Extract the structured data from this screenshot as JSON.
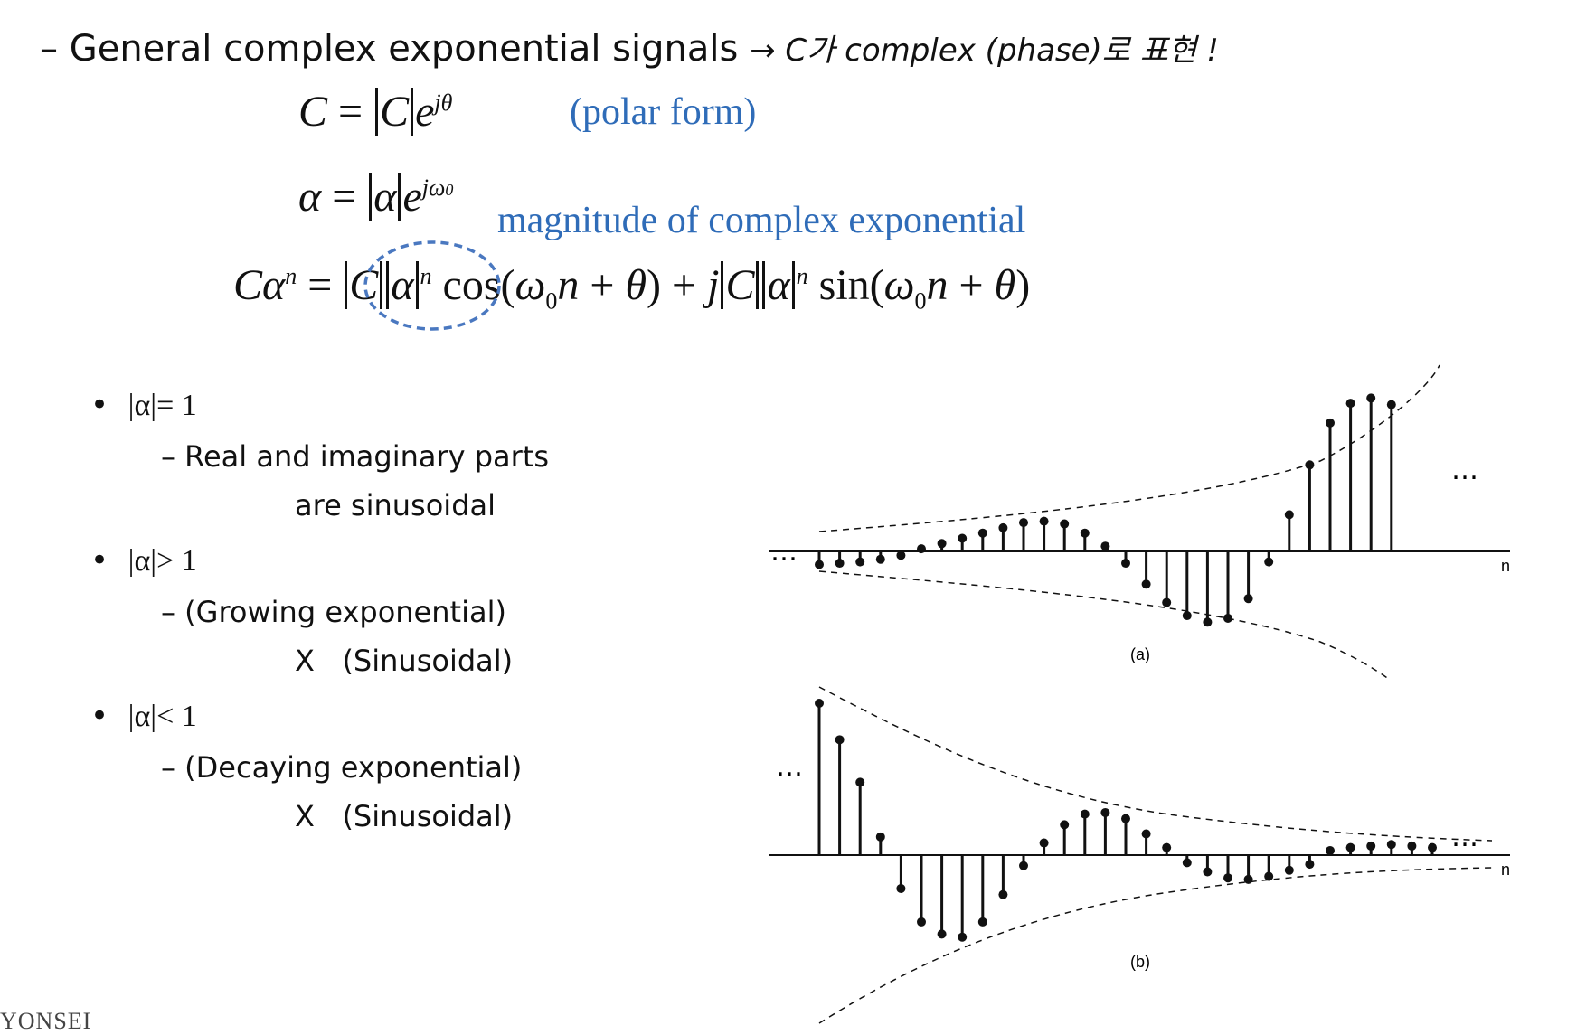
{
  "heading": {
    "text": "– General complex exponential signals",
    "note": "→ C가 complex (phase)로 표현 !"
  },
  "equations": {
    "c_polar": "C = |C|e^{jθ}",
    "alpha_polar": "α = |α|e^{jω0}",
    "c_alpha_n": "Cα^n = |C||α|^n cos(ω0 n + θ) + j|C||α|^n sin(ω0 n + θ)"
  },
  "annotations": {
    "polar_form": "(polar form)",
    "magnitude": "magnitude of complex exponential"
  },
  "cases": [
    {
      "bullet": "|α|= 1",
      "lines": [
        "– Real and imaginary parts",
        "are sinusoidal"
      ]
    },
    {
      "bullet": "|α|> 1",
      "lines": [
        "– (Growing exponential)",
        "X   (Sinusoidal)"
      ]
    },
    {
      "bullet": "|α|< 1",
      "lines": [
        "– (Decaying exponential)",
        "X   (Sinusoidal)"
      ]
    }
  ],
  "figures": {
    "a": {
      "label": "(a)",
      "axis": "n",
      "dots": "…"
    },
    "b": {
      "label": "(b)",
      "axis": "n",
      "dots": "…"
    }
  },
  "footer": {
    "logo_text": "YONSEI"
  },
  "chart_data": [
    {
      "type": "stem",
      "panel": "(a)",
      "xlabel": "n",
      "values": [
        -0.1,
        -0.09,
        -0.08,
        -0.06,
        -0.03,
        0.02,
        0.06,
        0.1,
        0.14,
        0.18,
        0.22,
        0.23,
        0.21,
        0.14,
        0.04,
        -0.09,
        -0.25,
        -0.39,
        -0.49,
        -0.54,
        -0.51,
        -0.36,
        -0.08,
        0.28,
        0.66,
        0.98,
        1.13,
        1.17,
        1.12
      ],
      "envelope": "growing"
    },
    {
      "type": "stem",
      "panel": "(b)",
      "xlabel": "n",
      "values": [
        1.0,
        0.76,
        0.48,
        0.12,
        -0.22,
        -0.44,
        -0.52,
        -0.54,
        -0.44,
        -0.26,
        -0.07,
        0.08,
        0.2,
        0.27,
        0.28,
        0.24,
        0.14,
        0.05,
        -0.05,
        -0.11,
        -0.15,
        -0.16,
        -0.14,
        -0.1,
        -0.06,
        0.03,
        0.05,
        0.06,
        0.07,
        0.06,
        0.05
      ]
    }
  ]
}
